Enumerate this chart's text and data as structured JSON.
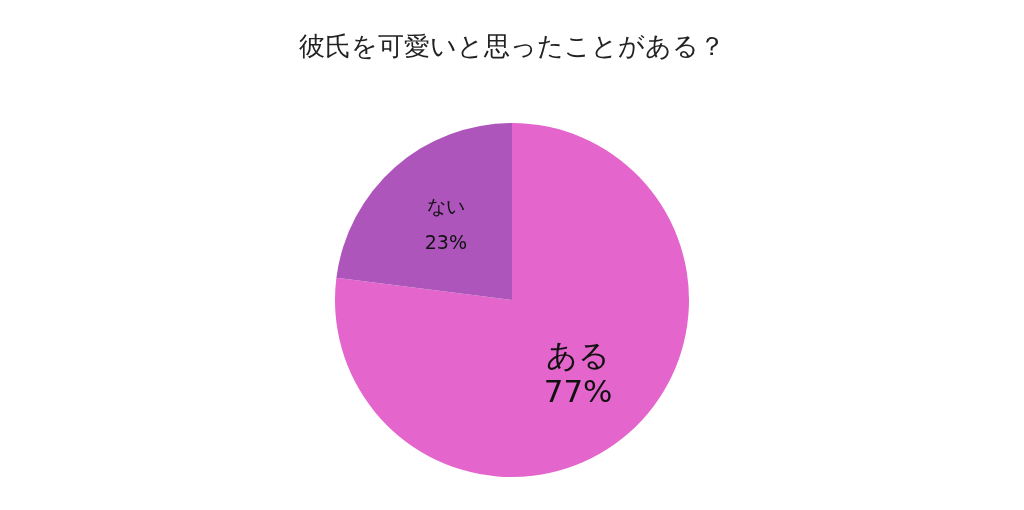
{
  "chart_data": {
    "type": "pie",
    "title": "彼氏を可愛いと思ったことがある？",
    "categories": [
      "ある",
      "ない"
    ],
    "values": [
      77,
      23
    ],
    "colors": [
      "#e466cc",
      "#ad55bb"
    ],
    "value_labels": [
      "77%",
      "23%"
    ],
    "legend": false
  }
}
